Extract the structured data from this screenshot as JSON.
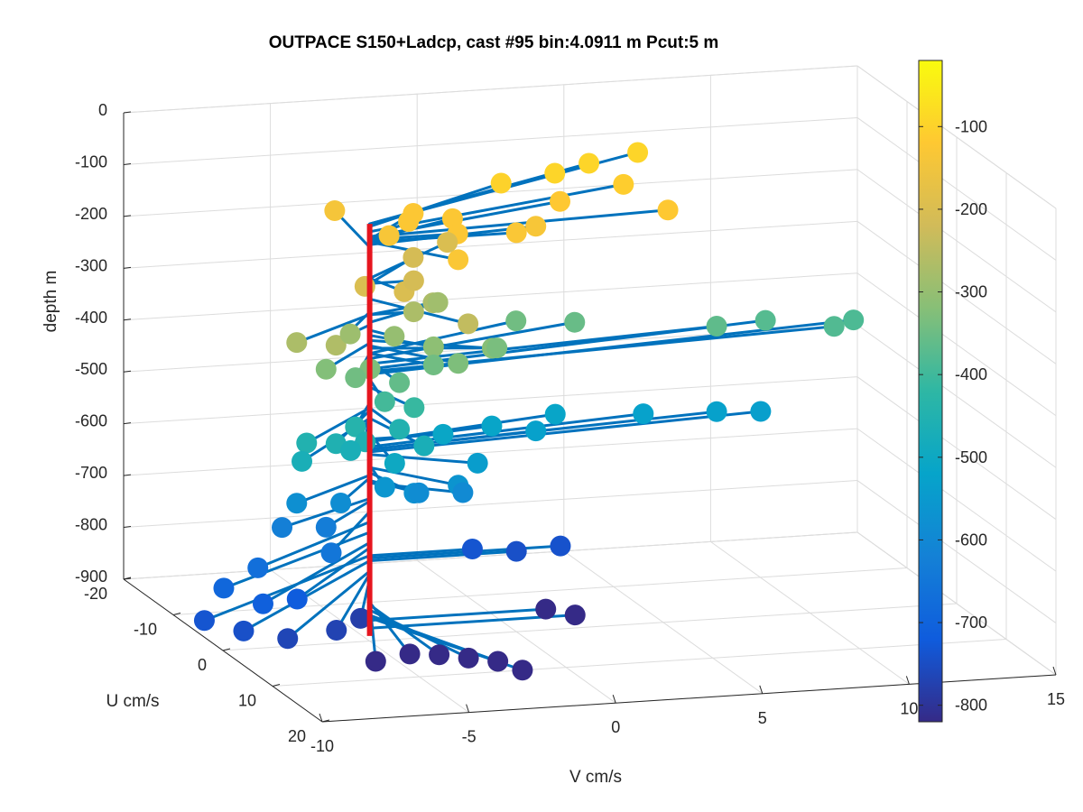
{
  "chart_data": {
    "type": "scatter",
    "title": "OUTPACE S150+Ladcp, cast #95 bin:4.0911 m  Pcut:5 m",
    "xlabel": "V cm/s",
    "ylabel": "U cm/s",
    "zlabel": "depth m",
    "xlim": [
      -10,
      15
    ],
    "ylim": [
      -20,
      20
    ],
    "zlim": [
      -900,
      0
    ],
    "x_ticks": [
      "-10",
      "-5",
      "0",
      "5",
      "10",
      "15"
    ],
    "y_ticks": [
      "-20",
      "-10",
      "0",
      "10",
      "20"
    ],
    "z_ticks": [
      "0",
      "-100",
      "-200",
      "-300",
      "-400",
      "-500",
      "-600",
      "-700",
      "-800",
      "-900"
    ],
    "grid": true,
    "view": "3d",
    "colormap": "parula",
    "colorbar": {
      "location": "right",
      "range": [
        -820,
        -20
      ],
      "tick_values": [
        -100,
        -200,
        -300,
        -400,
        -500,
        -600,
        -700,
        -800
      ],
      "tick_labels": [
        "-100",
        "-200",
        "-300",
        "-400",
        "-500",
        "-600",
        "-700",
        "-800"
      ]
    },
    "colors": {
      "line": "#0072bd",
      "axis_line": "#e6151f"
    },
    "profile": {
      "v": -5,
      "u": 0,
      "depth_top": -95,
      "depth_bottom": -890
    },
    "points": [
      {
        "v": 6.5,
        "u": -14,
        "depth": -95
      },
      {
        "v": 4.5,
        "u": -12,
        "depth": -95
      },
      {
        "v": 3.0,
        "u": -10,
        "depth": -95
      },
      {
        "v": 1.0,
        "u": -9,
        "depth": -100
      },
      {
        "v": 5.0,
        "u": -8,
        "depth": -110
      },
      {
        "v": 2.5,
        "u": -6,
        "depth": -120
      },
      {
        "v": -2.5,
        "u": -6,
        "depth": -125
      },
      {
        "v": -1.5,
        "u": -4,
        "depth": -125
      },
      {
        "v": -3.0,
        "u": -4,
        "depth": -125
      },
      {
        "v": 5.5,
        "u": -2,
        "depth": -120
      },
      {
        "v": -4.0,
        "u": -2,
        "depth": -135
      },
      {
        "v": -2.0,
        "u": 0,
        "depth": -125
      },
      {
        "v": 0.0,
        "u": 0,
        "depth": -130
      },
      {
        "v": 1.0,
        "u": -2,
        "depth": -135
      },
      {
        "v": -4.5,
        "u": -10,
        "depth": -140
      },
      {
        "v": -3.0,
        "u": 6,
        "depth": -130
      },
      {
        "v": -5.5,
        "u": 2,
        "depth": -200
      },
      {
        "v": -4.5,
        "u": 4,
        "depth": -200
      },
      {
        "v": -3.5,
        "u": 0,
        "depth": -210
      },
      {
        "v": -2.5,
        "u": -6,
        "depth": -210
      },
      {
        "v": -1.0,
        "u": -8,
        "depth": -200
      },
      {
        "v": -3.0,
        "u": 8,
        "depth": -240
      },
      {
        "v": -8.5,
        "u": 6,
        "depth": -270
      },
      {
        "v": -7.5,
        "u": 8,
        "depth": -265
      },
      {
        "v": -3.5,
        "u": 0,
        "depth": -270
      },
      {
        "v": -2.5,
        "u": -2,
        "depth": -270
      },
      {
        "v": -2.0,
        "u": -4,
        "depth": -285
      },
      {
        "v": -6.0,
        "u": 2,
        "depth": -290
      },
      {
        "v": -4.5,
        "u": 2,
        "depth": -300
      },
      {
        "v": -3.5,
        "u": 4,
        "depth": -310
      },
      {
        "v": -1.5,
        "u": 4,
        "depth": -320
      },
      {
        "v": -7.5,
        "u": 6,
        "depth": -325
      },
      {
        "v": -6.0,
        "u": 6,
        "depth": -330
      },
      {
        "v": -3.0,
        "u": 6,
        "depth": -330
      },
      {
        "v": -1.0,
        "u": 2,
        "depth": -335
      },
      {
        "v": 1.0,
        "u": -6,
        "depth": -345
      },
      {
        "v": 3.0,
        "u": -6,
        "depth": -355
      },
      {
        "v": 7.5,
        "u": -4,
        "depth": -365
      },
      {
        "v": 9.5,
        "u": -6,
        "depth": -375
      },
      {
        "v": 11.5,
        "u": -4,
        "depth": -380
      },
      {
        "v": 12.5,
        "u": -6,
        "depth": -385
      },
      {
        "v": -6.5,
        "u": 6,
        "depth": -345
      },
      {
        "v": -5.0,
        "u": 6,
        "depth": -360
      },
      {
        "v": -3.5,
        "u": 4,
        "depth": -345
      },
      {
        "v": -5.5,
        "u": 6,
        "depth": -395
      },
      {
        "v": -4.5,
        "u": 6,
        "depth": -410
      },
      {
        "v": -6.5,
        "u": 6,
        "depth": -440
      },
      {
        "v": -5.0,
        "u": 6,
        "depth": -450
      },
      {
        "v": -8.5,
        "u": 8,
        "depth": -450
      },
      {
        "v": -7.5,
        "u": 8,
        "depth": -455
      },
      {
        "v": -6.5,
        "u": 8,
        "depth": -455
      },
      {
        "v": -7.0,
        "u": 8,
        "depth": -470
      },
      {
        "v": -4.5,
        "u": 8,
        "depth": -470
      },
      {
        "v": -9.0,
        "u": 10,
        "depth": -470
      },
      {
        "v": -5.5,
        "u": 8,
        "depth": -500
      },
      {
        "v": -2.5,
        "u": 0,
        "depth": -510
      },
      {
        "v": -0.5,
        "u": -2,
        "depth": -515
      },
      {
        "v": 2.0,
        "u": -4,
        "depth": -515
      },
      {
        "v": 5.0,
        "u": -4,
        "depth": -525
      },
      {
        "v": 7.5,
        "u": -4,
        "depth": -530
      },
      {
        "v": 9.0,
        "u": -4,
        "depth": -535
      },
      {
        "v": 1.0,
        "u": -2,
        "depth": -530
      },
      {
        "v": -2.0,
        "u": 4,
        "depth": -540
      },
      {
        "v": -5.5,
        "u": 6,
        "depth": -560
      },
      {
        "v": -4.5,
        "u": 6,
        "depth": -575
      },
      {
        "v": -3.0,
        "u": 6,
        "depth": -565
      },
      {
        "v": -4.0,
        "u": 4,
        "depth": -590
      },
      {
        "v": -2.5,
        "u": 4,
        "depth": -595
      },
      {
        "v": -8.5,
        "u": 6,
        "depth": -580
      },
      {
        "v": -7.0,
        "u": 6,
        "depth": -585
      },
      {
        "v": -9.0,
        "u": 6,
        "depth": -625
      },
      {
        "v": -7.5,
        "u": 6,
        "depth": -630
      },
      {
        "v": -8.0,
        "u": 10,
        "depth": -650
      },
      {
        "v": -10.5,
        "u": 10,
        "depth": -670
      },
      {
        "v": -12.0,
        "u": 12,
        "depth": -690
      },
      {
        "v": -11.0,
        "u": 14,
        "depth": -710
      },
      {
        "v": -9.5,
        "u": 12,
        "depth": -720
      },
      {
        "v": -13.0,
        "u": 14,
        "depth": -735
      },
      {
        "v": -12.0,
        "u": 16,
        "depth": -745
      },
      {
        "v": -10.5,
        "u": 16,
        "depth": -765
      },
      {
        "v": -8.5,
        "u": 14,
        "depth": -770
      },
      {
        "v": -1.5,
        "u": 0,
        "depth": -735
      },
      {
        "v": 0.0,
        "u": 0,
        "depth": -745
      },
      {
        "v": 1.5,
        "u": 0,
        "depth": -740
      },
      {
        "v": -7.0,
        "u": 10,
        "depth": -780
      },
      {
        "v": -7.5,
        "u": 16,
        "depth": -820
      },
      {
        "v": -6.0,
        "u": 14,
        "depth": -825
      },
      {
        "v": -5.0,
        "u": 14,
        "depth": -830
      },
      {
        "v": -4.0,
        "u": 14,
        "depth": -840
      },
      {
        "v": -3.0,
        "u": 14,
        "depth": -850
      },
      {
        "v": -2.5,
        "u": 16,
        "depth": -855
      },
      {
        "v": 1.0,
        "u": 0,
        "depth": -860
      },
      {
        "v": 2.0,
        "u": 0,
        "depth": -875
      }
    ]
  }
}
